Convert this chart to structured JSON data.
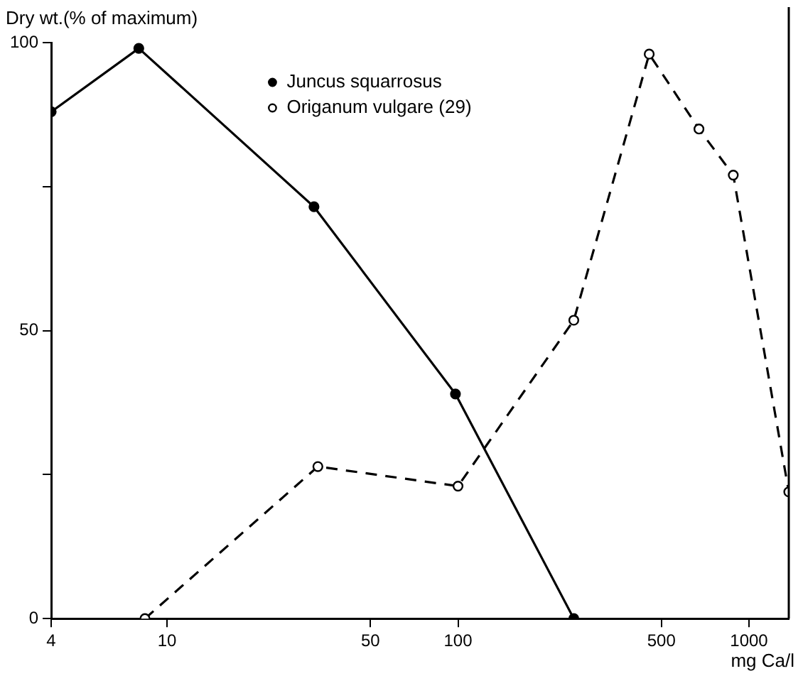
{
  "chart_data": {
    "type": "line",
    "ylabel": "Dry wt.(% of maximum)",
    "xlabel": "mg Ca/l",
    "log": "x",
    "xlim": [
      4,
      1370
    ],
    "xticks": [
      4,
      10,
      50,
      100,
      500,
      1000
    ],
    "ylim": [
      0,
      100
    ],
    "yticks": [
      0,
      {
        "value": 25,
        "label": null
      },
      50,
      {
        "value": 75,
        "label": null
      },
      100
    ],
    "grid": false,
    "legend": "top",
    "marker": "circle",
    "series": [
      {
        "name": "Juncus squarrosus",
        "color": "#000000",
        "line_style": "solid",
        "x": [
          4,
          8,
          32,
          98,
          250
        ],
        "values": [
          88,
          99,
          71.5,
          39,
          0
        ]
      },
      {
        "name": "Origanum vulgare (29)",
        "color": "#000000",
        "line_style": "dashed",
        "x": [
          8.4,
          33,
          100,
          250,
          454,
          673,
          883,
          1370
        ],
        "values": [
          0,
          26.4,
          23,
          51.8,
          98,
          85,
          77,
          22
        ]
      }
    ]
  }
}
